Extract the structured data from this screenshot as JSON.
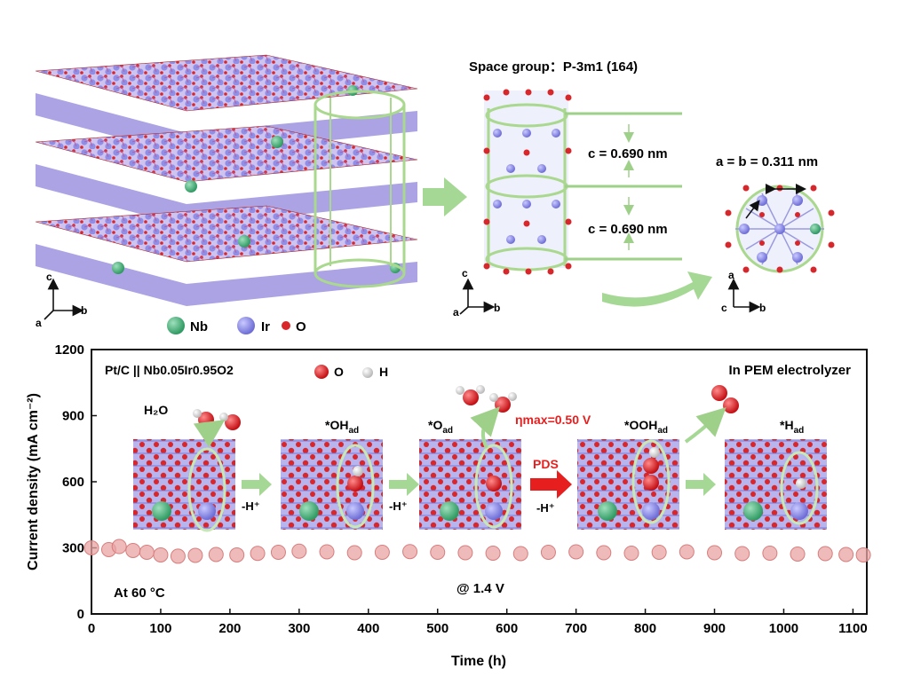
{
  "structure_panel": {
    "space_group_label": "Space group：P-3m1 (164)",
    "c_param_top": "c = 0.690 nm",
    "c_param_bottom": "c = 0.690 nm",
    "ab_param": "a = b = 0.311 nm",
    "legend": [
      {
        "label": "Nb",
        "color": "#4caf7d"
      },
      {
        "label": "Ir",
        "color": "#8f8fe8"
      },
      {
        "label": "O",
        "color": "#d9262b"
      }
    ],
    "axes_left": {
      "up": "c",
      "right": "b",
      "diag": "a"
    },
    "axes_mid": {
      "up": "c",
      "right": "b",
      "diag": "a"
    },
    "axes_right": {
      "up": "a",
      "right": "b",
      "diag": "c"
    }
  },
  "chart_data": {
    "type": "scatter",
    "xlabel": "Time (h)",
    "ylabel": "Current density (mA cm⁻²)",
    "xlim": [
      0,
      1120
    ],
    "ylim": [
      0,
      1200
    ],
    "xticks": [
      0,
      100,
      200,
      300,
      400,
      500,
      600,
      700,
      800,
      900,
      1000,
      1100
    ],
    "yticks": [
      0,
      300,
      600,
      900,
      1200
    ],
    "series": [
      {
        "color": "#e8a3a3",
        "x": [
          0,
          25,
          40,
          60,
          80,
          100,
          125,
          150,
          180,
          210,
          240,
          270,
          300,
          340,
          380,
          420,
          460,
          500,
          540,
          580,
          620,
          660,
          700,
          740,
          780,
          820,
          860,
          900,
          940,
          980,
          1020,
          1060,
          1090,
          1115
        ],
        "y": [
          300,
          292,
          306,
          288,
          280,
          268,
          262,
          266,
          270,
          268,
          275,
          280,
          285,
          282,
          278,
          280,
          283,
          280,
          278,
          276,
          274,
          280,
          282,
          278,
          276,
          280,
          282,
          278,
          274,
          276,
          272,
          274,
          270,
          268
        ]
      }
    ],
    "annotations": {
      "system": "Pt/C || Nb0.05Ir0.95O2",
      "temperature": "At 60 °C",
      "voltage": "@ 1.4 V",
      "device": "In PEM electrolyzer",
      "overpotential": "ηmax=0.50 V",
      "pds": "PDS",
      "mech_legend": {
        "o": "O",
        "h": "H"
      }
    },
    "mechanism_steps": [
      {
        "species": "H₂O",
        "arrow": "-H⁺"
      },
      {
        "species": "*OH",
        "sub": "ad",
        "arrow": "-H⁺"
      },
      {
        "species": "*O",
        "sub": "ad",
        "arrow": "-H⁺"
      },
      {
        "species": "*OOH",
        "sub": "ad",
        "arrow": ""
      },
      {
        "species": "*H",
        "sub": "ad",
        "arrow": ""
      }
    ]
  }
}
